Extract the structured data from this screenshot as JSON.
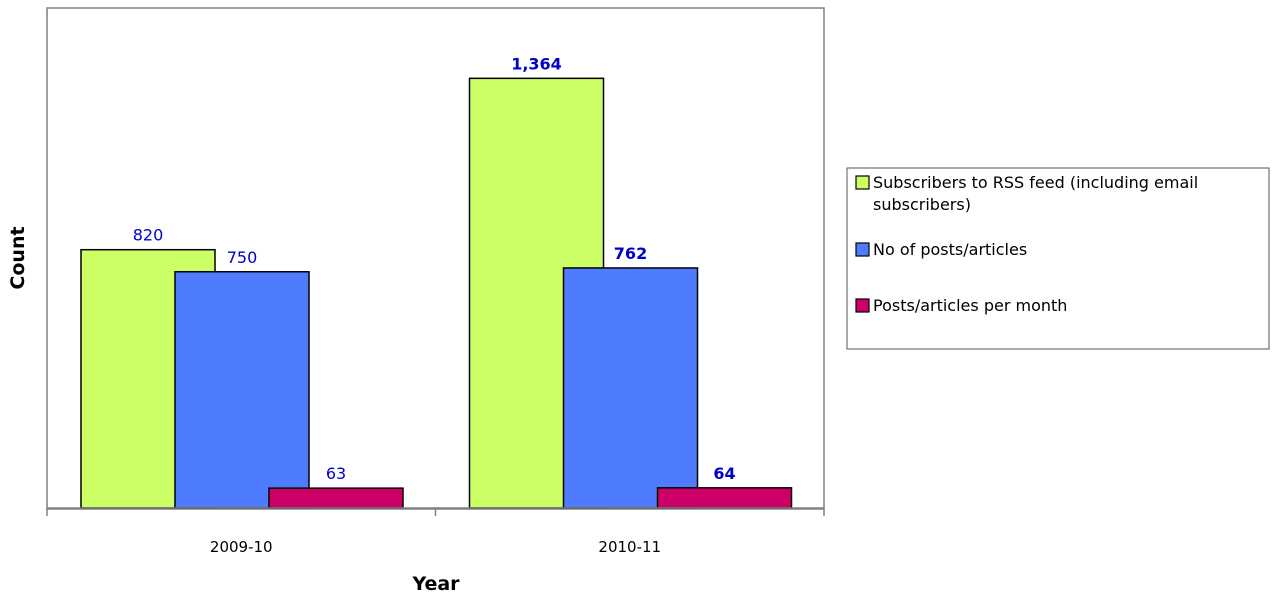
{
  "chart_data": {
    "type": "bar",
    "title": "",
    "xlabel": "Year",
    "ylabel": "Count",
    "categories": [
      "2009-10",
      "2010-11"
    ],
    "ylim": [
      0,
      1500
    ],
    "grid": false,
    "legend_position": "right",
    "series": [
      {
        "name": "Subscribers to RSS feed (including email subscribers)",
        "legend_lines": [
          "Subscribers to RSS feed (including email",
          "subscribers)"
        ],
        "color": "#ccff66",
        "values": [
          820,
          1364
        ],
        "labels": [
          "820",
          "1,364"
        ]
      },
      {
        "name": "No of posts/articles",
        "legend_lines": [
          "No of posts/articles"
        ],
        "color": "#4f7cff",
        "values": [
          750,
          762
        ],
        "labels": [
          "750",
          "762"
        ]
      },
      {
        "name": "Posts/articles per month",
        "legend_lines": [
          "Posts/articles per month"
        ],
        "color": "#cc0066",
        "values": [
          63,
          64
        ],
        "labels": [
          "63",
          "64"
        ]
      }
    ],
    "label_color": "#0000cc",
    "bold_label_categories": [
      1
    ]
  }
}
